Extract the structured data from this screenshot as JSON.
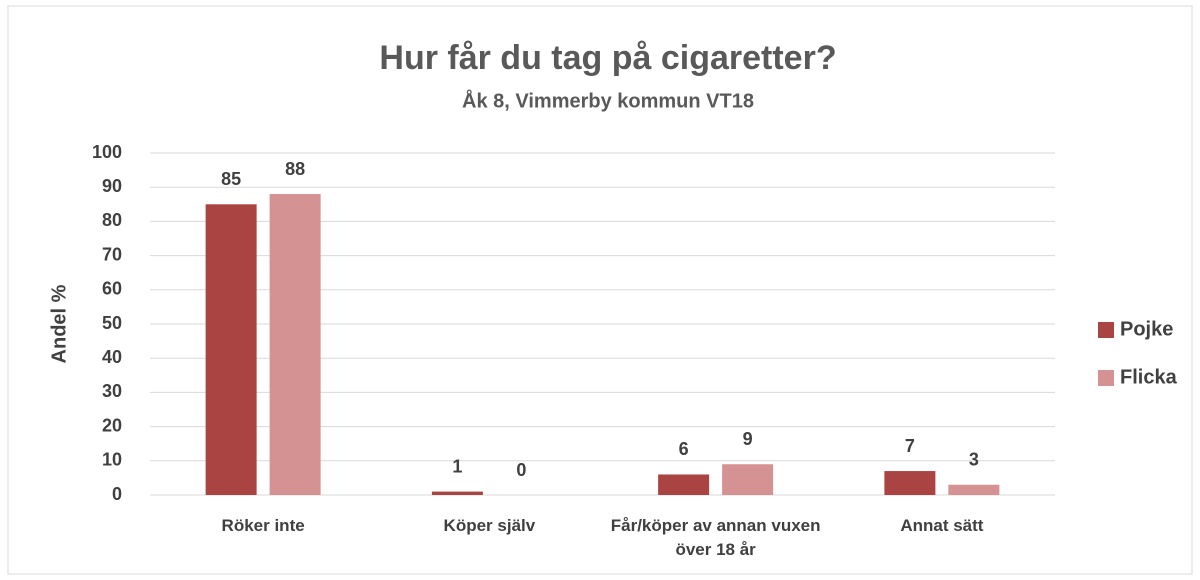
{
  "chart_data": {
    "type": "bar",
    "title": "Hur får du tag på cigaretter?",
    "subtitle": "Åk 8, Vimmerby kommun VT18",
    "y_label": "Andel %",
    "categories": [
      "Röker inte",
      "Köper själv",
      "Får/köper av annan vuxen över 18 år",
      "Annat sätt"
    ],
    "series": [
      {
        "name": "Pojke",
        "color": "#a94442",
        "values": [
          85,
          1,
          6,
          7
        ]
      },
      {
        "name": "Flicka",
        "color": "#d49292",
        "values": [
          88,
          0,
          9,
          3
        ]
      }
    ],
    "ylim": [
      0,
      100
    ],
    "yticks": [
      0,
      10,
      20,
      30,
      40,
      50,
      60,
      70,
      80,
      90,
      100
    ],
    "grid": true,
    "legend": "right"
  }
}
